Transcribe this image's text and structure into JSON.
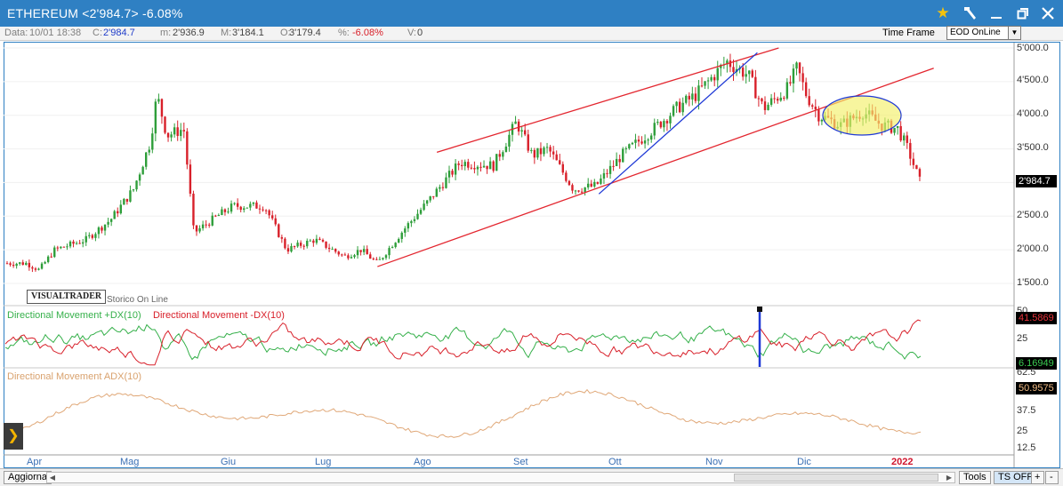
{
  "window": {
    "title": "ETHEREUM <2'984.7> -6.08%",
    "controls": [
      "star-icon",
      "hammer-icon",
      "minimize-icon",
      "maximize-icon",
      "close-icon"
    ],
    "bar_color": "#2f80c3"
  },
  "info": {
    "data_label": "Data:",
    "data_value": "10/01 18:38",
    "close_label": "C:",
    "close_value": "2'984.7",
    "min_label": "m:",
    "min_value": "2'936.9",
    "max_label": "M:",
    "max_value": "3'184.1",
    "open_label": "O:",
    "open_value": "3'179.4",
    "pct_label": "%:",
    "pct_value": "-6.08%",
    "vol_label": "V:",
    "vol_value": "0",
    "timeframe_label": "Time Frame",
    "timeframe_value": "EOD OnLine"
  },
  "logo": {
    "text": "VISUALTRADER",
    "subtitle": "Storico On Line"
  },
  "price_axis": {
    "ticks": [
      "5'000.0",
      "4'500.0",
      "4'000.0",
      "3'500.0",
      "3'000.0",
      "2'500.0",
      "2'000.0",
      "1'500.0"
    ],
    "current_price": "2'984.7"
  },
  "indicators": {
    "dmi_plus_label": "Directional Movement +DX(10)",
    "dmi_minus_label": "Directional Movement -DX(10)",
    "dmi_axis": [
      "50",
      "25"
    ],
    "dmi_minus_value": "41.5869",
    "dmi_plus_value": "6.16949",
    "adx_label": "Directional Movement ADX(10)",
    "adx_axis": [
      "62.5",
      "50",
      "37.5",
      "25",
      "12.5"
    ],
    "adx_value": "50.9575"
  },
  "months": [
    "Apr",
    "Mag",
    "Giu",
    "Lug",
    "Ago",
    "Set",
    "Ott",
    "Nov",
    "Dic",
    "2022"
  ],
  "statusbar": {
    "refresh": "Aggiorna",
    "tools": "Tools",
    "ts": "TS OFF",
    "plus": "+",
    "minus": "-"
  },
  "colors": {
    "up": "#2e9e3a",
    "down": "#d8202a",
    "trend_red": "#e3262f",
    "trend_blue": "#1f39d6",
    "adx": "#e0a878",
    "dmi_plus": "#35b04a",
    "dmi_minus": "#d8202a"
  },
  "chart_data": {
    "type": "candlestick",
    "anchor_points": [
      [
        "Apr-01",
        1800
      ],
      [
        "Apr-05",
        1700
      ],
      [
        "Apr-10",
        2000
      ],
      [
        "Apr-20",
        2150
      ],
      [
        "Apr-28",
        2450
      ],
      [
        "May-05",
        2900
      ],
      [
        "May-10",
        3600
      ],
      [
        "May-12",
        4300
      ],
      [
        "May-15",
        3700
      ],
      [
        "May-20",
        3800
      ],
      [
        "May-23",
        2250
      ],
      [
        "May-30",
        2500
      ],
      [
        "Jun-05",
        2650
      ],
      [
        "Jun-15",
        2650
      ],
      [
        "Jun-22",
        2000
      ],
      [
        "Jul-01",
        2150
      ],
      [
        "Jul-10",
        1900
      ],
      [
        "Jul-15",
        2000
      ],
      [
        "Jul-20",
        1800
      ],
      [
        "Jul-28",
        2300
      ],
      [
        "Aug-05",
        2700
      ],
      [
        "Aug-15",
        3300
      ],
      [
        "Aug-25",
        3250
      ],
      [
        "Sep-02",
        3900
      ],
      [
        "Sep-07",
        3400
      ],
      [
        "Sep-12",
        3500
      ],
      [
        "Sep-20",
        2900
      ],
      [
        "Sep-27",
        2950
      ],
      [
        "Oct-05",
        3400
      ],
      [
        "Oct-15",
        3800
      ],
      [
        "Oct-22",
        4100
      ],
      [
        "Oct-28",
        4300
      ],
      [
        "Nov-08",
        4800
      ],
      [
        "Nov-15",
        4600
      ],
      [
        "Nov-20",
        4100
      ],
      [
        "Nov-28",
        4400
      ],
      [
        "Dec-01",
        4700
      ],
      [
        "Dec-04",
        4300
      ],
      [
        "Dec-08",
        4000
      ],
      [
        "Dec-15",
        3850
      ],
      [
        "Dec-22",
        4050
      ],
      [
        "Dec-28",
        3850
      ],
      [
        "Jan-03",
        3800
      ],
      [
        "Jan-06",
        3500
      ],
      [
        "Jan-10",
        2984.7
      ]
    ],
    "price_range": [
      1500,
      5000
    ],
    "trendlines": [
      {
        "color": "red",
        "from": [
          "Jul-20",
          1750
        ],
        "to": [
          "Jan-14",
          4700
        ]
      },
      {
        "color": "red",
        "from": [
          "Aug-08",
          3450
        ],
        "to": [
          "Nov-25",
          5000
        ]
      },
      {
        "color": "blue",
        "from": [
          "Sep-28",
          2830
        ],
        "to": [
          "Nov-18",
          4930
        ]
      }
    ],
    "dmi_range": [
      0,
      50
    ],
    "adx_range": [
      0,
      70
    ]
  }
}
